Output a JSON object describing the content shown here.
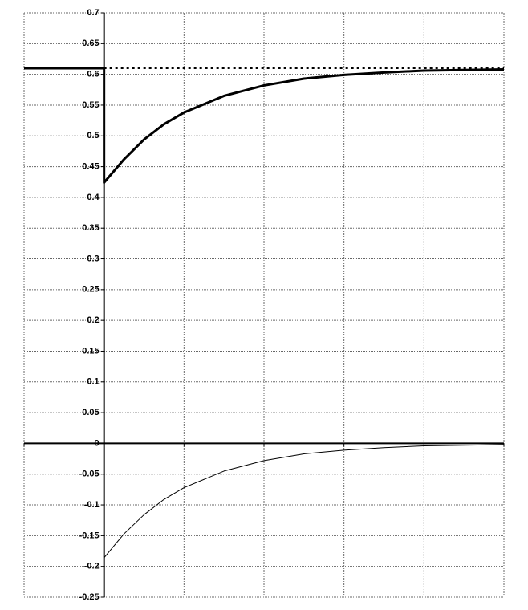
{
  "chart_data": {
    "type": "line",
    "xlim": [
      -1,
      5
    ],
    "xticks": [
      -1,
      0,
      1,
      2,
      3,
      4,
      5
    ],
    "ylim": [
      -0.25,
      0.7
    ],
    "yticks": [
      0.7,
      0.65,
      0.6,
      0.55,
      0.5,
      0.45,
      0.4,
      0.35,
      0.3,
      0.25,
      0.2,
      0.15,
      0.1,
      0.05,
      0,
      -0.05,
      -0.1,
      -0.15,
      -0.2,
      -0.25
    ],
    "grid": true,
    "series": [
      {
        "color": "#000000",
        "style": "solid",
        "width": 3,
        "x": [
          -1,
          0,
          0,
          0.25,
          0.5,
          0.75,
          1,
          1.5,
          2,
          2.5,
          3,
          3.5,
          4,
          4.5,
          5
        ],
        "values": [
          0.61,
          0.61,
          0.424,
          0.462,
          0.494,
          0.519,
          0.538,
          0.565,
          0.582,
          0.593,
          0.599,
          0.603,
          0.606,
          0.607,
          0.608
        ]
      },
      {
        "color": "#000000",
        "style": "dotted",
        "width": 2,
        "x": [
          0,
          5
        ],
        "values": [
          0.61,
          0.61
        ]
      },
      {
        "color": "#000000",
        "style": "solid",
        "width": 1,
        "x": [
          0,
          0.25,
          0.5,
          0.75,
          1,
          1.5,
          2,
          2.5,
          3,
          3.5,
          4,
          4.5,
          5
        ],
        "values": [
          -0.186,
          -0.147,
          -0.116,
          -0.091,
          -0.072,
          -0.045,
          -0.028,
          -0.017,
          -0.011,
          -0.007,
          -0.004,
          -0.003,
          -0.002
        ]
      }
    ]
  }
}
